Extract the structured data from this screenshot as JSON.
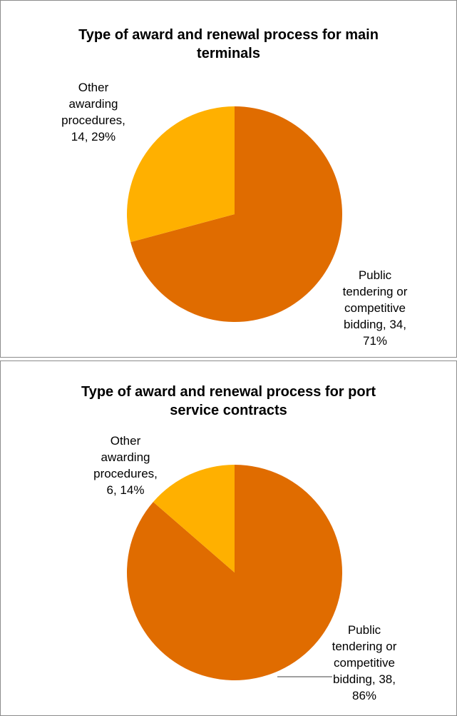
{
  "chart_data": [
    {
      "type": "pie",
      "title": "Type of award and renewal process for main terminals",
      "title_lines": [
        "Type of award and renewal process for main",
        "terminals"
      ],
      "start_angle": "12 o'clock, clockwise",
      "slices": [
        {
          "name": "Public tendering or competitive bidding",
          "value": 34,
          "percent": "71%",
          "color": "#E06C00",
          "label_lines": [
            "Public",
            "tendering or",
            "competitive",
            "bidding, 34,",
            "71%"
          ]
        },
        {
          "name": "Other awarding procedures",
          "value": 14,
          "percent": "29%",
          "color": "#FFB000",
          "label_lines": [
            "Other",
            "awarding",
            "procedures,",
            "14, 29%"
          ]
        }
      ]
    },
    {
      "type": "pie",
      "title": "Type of award and renewal process for port service contracts",
      "title_lines": [
        "Type of award and renewal process for port",
        "service contracts"
      ],
      "start_angle": "12 o'clock, clockwise",
      "slices": [
        {
          "name": "Public tendering or competitive bidding",
          "value": 38,
          "percent": "86%",
          "color": "#E06C00",
          "label_lines": [
            "Public",
            "tendering or",
            "competitive",
            "bidding, 38,",
            "86%"
          ]
        },
        {
          "name": "Other awarding procedures",
          "value": 6,
          "percent": "14%",
          "color": "#FFB000",
          "label_lines": [
            "Other",
            "awarding",
            "procedures,",
            "6, 14%"
          ]
        }
      ]
    }
  ]
}
